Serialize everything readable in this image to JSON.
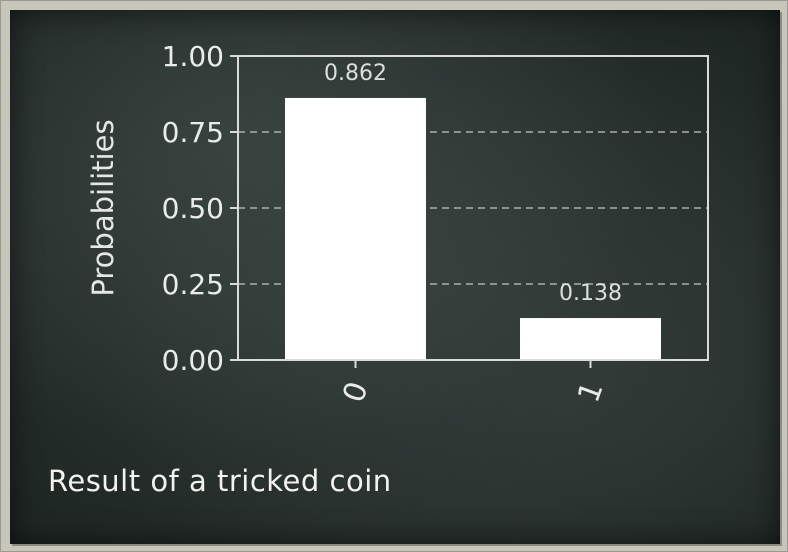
{
  "caption": "Result of a tricked coin",
  "chart_data": {
    "type": "bar",
    "categories": [
      "0",
      "1"
    ],
    "values": [
      0.862,
      0.138
    ],
    "value_labels": [
      "0.862",
      "0.138"
    ],
    "ylabel": "Probabilities",
    "ylim": [
      0,
      1.0
    ],
    "yticks": [
      0.0,
      0.25,
      0.5,
      0.75,
      1.0
    ],
    "ytick_labels": [
      "0.00",
      "0.25",
      "0.50",
      "0.75",
      "1.00"
    ],
    "grid": "y-dashed",
    "bar_color": "#ffffff",
    "axis_color": "#d8dbd7"
  }
}
